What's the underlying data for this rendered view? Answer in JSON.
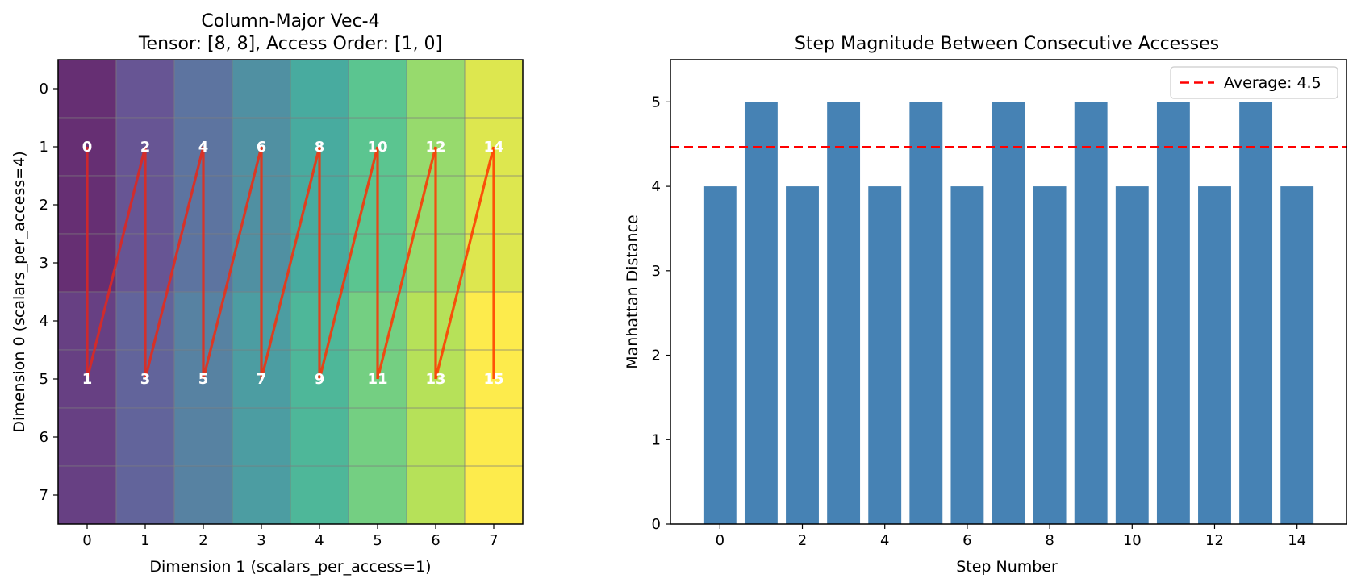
{
  "chart_data": [
    {
      "type": "heatmap",
      "title": "Column-Major Vec-4",
      "subtitle": "Tensor: [8, 8], Access Order: [1, 0]",
      "xlabel": "Dimension 1 (scalars_per_access=1)",
      "ylabel": "Dimension 0 (scalars_per_access=4)",
      "x_ticks": [
        "0",
        "1",
        "2",
        "3",
        "4",
        "5",
        "6",
        "7"
      ],
      "y_ticks": [
        "0",
        "1",
        "2",
        "3",
        "4",
        "5",
        "6",
        "7"
      ],
      "rows": 8,
      "cols": 8,
      "colormap": "viridis",
      "block_rows": 4,
      "access_points": [
        {
          "label": "0",
          "row": 1.5,
          "col": 0
        },
        {
          "label": "1",
          "row": 5.5,
          "col": 0
        },
        {
          "label": "2",
          "row": 1.5,
          "col": 1
        },
        {
          "label": "3",
          "row": 5.5,
          "col": 1
        },
        {
          "label": "4",
          "row": 1.5,
          "col": 2
        },
        {
          "label": "5",
          "row": 5.5,
          "col": 2
        },
        {
          "label": "6",
          "row": 1.5,
          "col": 3
        },
        {
          "label": "7",
          "row": 5.5,
          "col": 3
        },
        {
          "label": "8",
          "row": 1.5,
          "col": 4
        },
        {
          "label": "9",
          "row": 5.5,
          "col": 4
        },
        {
          "label": "10",
          "row": 1.5,
          "col": 5
        },
        {
          "label": "11",
          "row": 5.5,
          "col": 5
        },
        {
          "label": "12",
          "row": 1.5,
          "col": 6
        },
        {
          "label": "13",
          "row": 5.5,
          "col": 6
        },
        {
          "label": "14",
          "row": 1.5,
          "col": 7
        },
        {
          "label": "15",
          "row": 5.5,
          "col": 7
        }
      ],
      "path_color": "#d62728",
      "path_color_end": "#ff4500"
    },
    {
      "type": "bar",
      "title": "Step Magnitude Between Consecutive Accesses",
      "xlabel": "Step Number",
      "ylabel": "Manhattan Distance",
      "categories": [
        0,
        1,
        2,
        3,
        4,
        5,
        6,
        7,
        8,
        9,
        10,
        11,
        12,
        13,
        14
      ],
      "values": [
        4,
        5,
        4,
        5,
        4,
        5,
        4,
        5,
        4,
        5,
        4,
        5,
        4,
        5,
        4
      ],
      "xlim": [
        -1.2,
        15.2
      ],
      "ylim": [
        0,
        5.5
      ],
      "x_ticks": [
        0,
        2,
        4,
        6,
        8,
        10,
        12,
        14
      ],
      "y_ticks": [
        0,
        1,
        2,
        3,
        4,
        5
      ],
      "bar_color": "#4682b4",
      "average": 4.466666666666667,
      "average_color": "#ff0000",
      "legend": {
        "label": "Average: 4.5",
        "placement": "top-right"
      }
    }
  ]
}
